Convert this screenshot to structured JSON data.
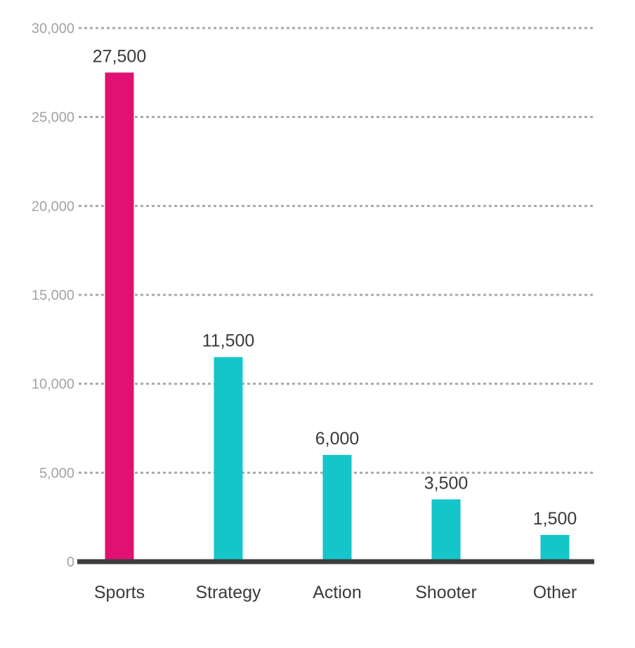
{
  "chart_data": {
    "type": "bar",
    "title": "",
    "xlabel": "",
    "ylabel": "",
    "categories": [
      "Sports",
      "Strategy",
      "Action",
      "Shooter",
      "Other"
    ],
    "values": [
      27500,
      11500,
      6000,
      3500,
      1500
    ],
    "value_labels": [
      "27,500",
      "11,500",
      "6,000",
      "3,500",
      "1,500"
    ],
    "ylim": [
      0,
      30000
    ],
    "yticks": [
      0,
      5000,
      10000,
      15000,
      20000,
      25000,
      30000
    ],
    "ytick_labels": [
      "0",
      "5,000",
      "10,000",
      "15,000",
      "20,000",
      "25,000",
      "30,000"
    ],
    "grid": true,
    "legend": "none",
    "colors": {
      "highlight": "#e01173",
      "default": "#14c6ca",
      "baseline": "#3d3d3d",
      "grid": "#a9a9a9"
    },
    "highlight_index": 0
  }
}
